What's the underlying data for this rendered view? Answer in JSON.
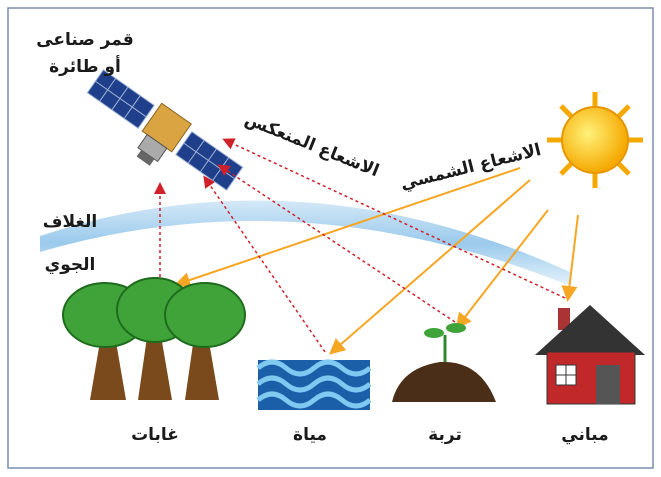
{
  "satellite_label": [
    "قمر صناعى",
    "أو طائرة"
  ],
  "reflected_radiation_label": "الاشعاع المنعكس",
  "solar_radiation_label": "الاشعاع الشمسي",
  "atmosphere_label": [
    "الغلاف",
    "الجوي"
  ],
  "targets": [
    {
      "label": "غابات"
    },
    {
      "label": "مياة"
    },
    {
      "label": "تربة"
    },
    {
      "label": "مباني"
    }
  ]
}
